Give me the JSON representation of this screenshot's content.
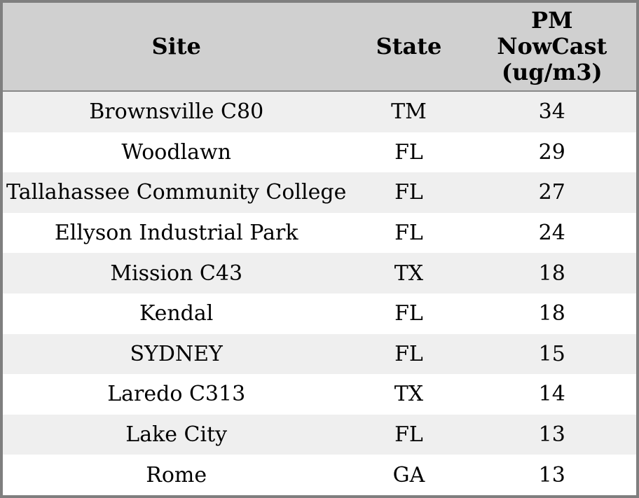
{
  "colors": {
    "outer_border": "#7f7f7f",
    "header_background": "#d0d0d0",
    "header_separator": "#888888",
    "odd_row_background": "#efefef",
    "even_row_background": "#ffffff",
    "text": "#000000"
  },
  "table": {
    "columns": {
      "site": "Site",
      "state": "State",
      "pm": "PM NowCast (ug/m3)",
      "pm_lines": [
        "PM",
        "NowCast",
        "(ug/m3)"
      ]
    },
    "rows": [
      {
        "site": "Brownsville C80",
        "state": "TM",
        "pm_nowcast": "34"
      },
      {
        "site": "Woodlawn",
        "state": "FL",
        "pm_nowcast": "29"
      },
      {
        "site": "Tallahassee Community College",
        "state": "FL",
        "pm_nowcast": "27"
      },
      {
        "site": "Ellyson Industrial Park",
        "state": "FL",
        "pm_nowcast": "24"
      },
      {
        "site": "Mission C43",
        "state": "TX",
        "pm_nowcast": "18"
      },
      {
        "site": "Kendal",
        "state": "FL",
        "pm_nowcast": "18"
      },
      {
        "site": "SYDNEY",
        "state": "FL",
        "pm_nowcast": "15"
      },
      {
        "site": "Laredo C313",
        "state": "TX",
        "pm_nowcast": "14"
      },
      {
        "site": "Lake City",
        "state": "FL",
        "pm_nowcast": "13"
      },
      {
        "site": "Rome",
        "state": "GA",
        "pm_nowcast": "13"
      }
    ]
  },
  "chart_data": {
    "type": "table",
    "columns": [
      "Site",
      "State",
      "PM NowCast (ug/m3)"
    ],
    "rows": [
      [
        "Brownsville C80",
        "TM",
        34
      ],
      [
        "Woodlawn",
        "FL",
        29
      ],
      [
        "Tallahassee Community College",
        "FL",
        27
      ],
      [
        "Ellyson Industrial Park",
        "FL",
        24
      ],
      [
        "Mission C43",
        "TX",
        18
      ],
      [
        "Kendal",
        "FL",
        18
      ],
      [
        "SYDNEY",
        "FL",
        15
      ],
      [
        "Laredo C313",
        "TX",
        14
      ],
      [
        "Lake City",
        "FL",
        13
      ],
      [
        "Rome",
        "GA",
        13
      ]
    ]
  }
}
